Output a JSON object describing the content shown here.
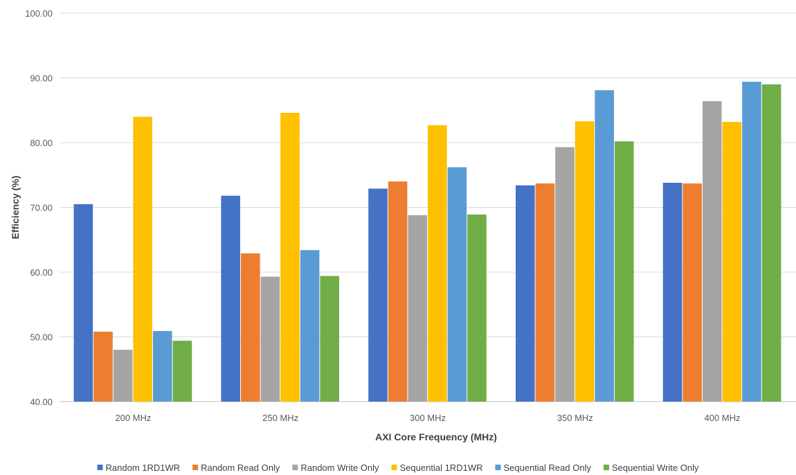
{
  "chart_data": {
    "type": "bar",
    "title": "",
    "xlabel": "AXI Core Frequency (MHz)",
    "ylabel": "Efficiency (%)",
    "ylim": [
      40,
      100
    ],
    "ytick_step": 10,
    "ytick_decimals": 2,
    "grid": true,
    "legend_position": "bottom",
    "categories": [
      "200 MHz",
      "250 MHz",
      "300 MHz",
      "350 MHz",
      "400 MHz"
    ],
    "series": [
      {
        "name": "Random 1RD1WR",
        "color": "#4472C4",
        "values": [
          70.5,
          71.8,
          72.9,
          73.4,
          73.8
        ]
      },
      {
        "name": "Random Read Only",
        "color": "#ED7D31",
        "values": [
          50.8,
          62.9,
          74.0,
          73.7,
          73.7
        ]
      },
      {
        "name": "Random Write Only",
        "color": "#A5A5A5",
        "values": [
          48.0,
          59.3,
          68.8,
          79.3,
          86.4
        ]
      },
      {
        "name": "Sequential 1RD1WR",
        "color": "#FFC000",
        "values": [
          84.0,
          84.6,
          82.7,
          83.3,
          83.2
        ]
      },
      {
        "name": "Sequential Read Only",
        "color": "#5B9BD5",
        "values": [
          50.9,
          63.4,
          76.2,
          88.1,
          89.4
        ]
      },
      {
        "name": "Sequential Write Only",
        "color": "#70AD47",
        "values": [
          49.4,
          59.4,
          68.9,
          80.2,
          89.0
        ]
      }
    ]
  }
}
